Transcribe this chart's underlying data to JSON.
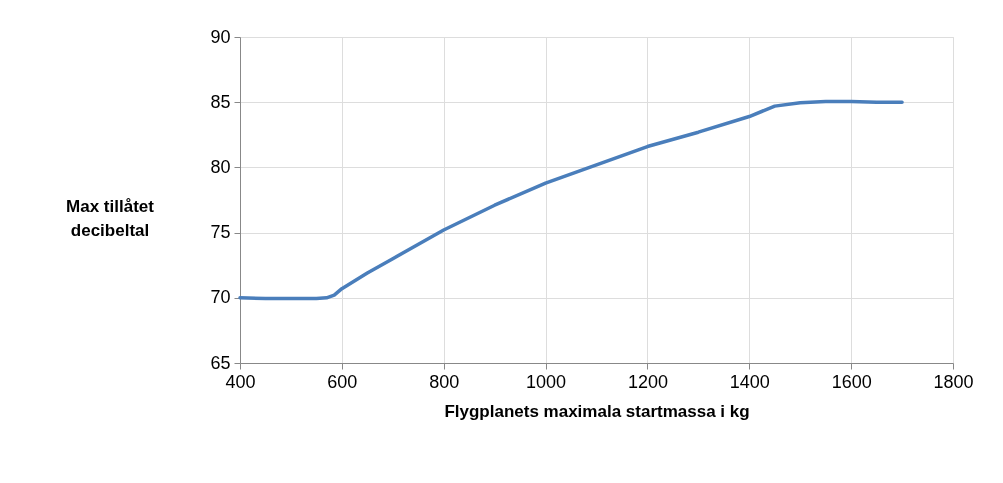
{
  "chart_data": {
    "type": "line",
    "xlabel": "Flygplanets maximala startmassa i kg",
    "ylabel": "Max tillåtet\ndecibeltal",
    "x": [
      400,
      450,
      500,
      550,
      570,
      585,
      600,
      650,
      700,
      800,
      900,
      1000,
      1100,
      1200,
      1300,
      1400,
      1450,
      1500,
      1550,
      1600,
      1650,
      1700
    ],
    "series": [
      {
        "color": "#4a7ebb",
        "values": [
          70,
          69.95,
          69.95,
          69.95,
          70,
          70.2,
          70.7,
          71.9,
          73.0,
          75.2,
          77.1,
          78.8,
          80.2,
          81.6,
          82.7,
          83.9,
          84.7,
          84.95,
          85.05,
          85.05,
          85.0,
          85.0
        ]
      }
    ],
    "xlim": [
      400,
      1800
    ],
    "xticks": [
      400,
      600,
      800,
      1000,
      1200,
      1400,
      1600,
      1800
    ],
    "ylim": [
      65,
      90
    ],
    "yticks": [
      65,
      70,
      75,
      80,
      85,
      90
    ],
    "grid": true,
    "legend": false,
    "marker": "none",
    "line_style": "solid"
  }
}
